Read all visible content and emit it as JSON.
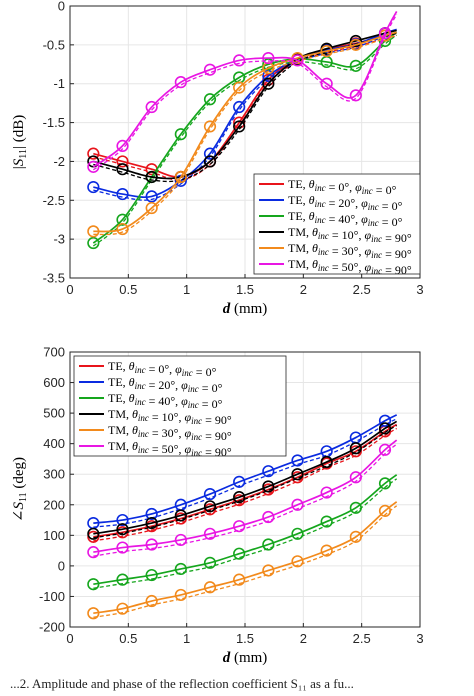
{
  "caption": "...2.   Amplitude and phase of the reflection coefficient S₁₁ as a fu...",
  "colors": {
    "TE0": "#e8141b",
    "TE20": "#0a2be0",
    "TE40": "#15a61d",
    "TM10": "#000000",
    "TM30": "#f28a1c",
    "TM50": "#e816e3"
  },
  "chart_data": [
    {
      "type": "line",
      "xlabel_italic": "d",
      "xlabel_unit": "(mm)",
      "ylabel": "|S11| (dB)",
      "xlim": [
        0,
        3
      ],
      "ylim": [
        -3.5,
        0
      ],
      "xticks": [
        "0",
        "0.5",
        "1",
        "1.5",
        "2",
        "2.5",
        "3"
      ],
      "yticks": [
        "0",
        "-0.5",
        "-1",
        "-1.5",
        "-2",
        "-2.5",
        "-3",
        "-3.5"
      ],
      "grid": true,
      "legend_position": "right",
      "x": [
        0.2,
        0.45,
        0.7,
        0.95,
        1.2,
        1.45,
        1.7,
        1.95,
        2.2,
        2.45,
        2.7
      ],
      "series": [
        {
          "name": "TE, θinc = 0°, φinc = 0°",
          "color_key": "TE0",
          "values": [
            -1.9,
            -2.0,
            -2.1,
            -2.2,
            -2.0,
            -1.5,
            -0.95,
            -0.68,
            -0.56,
            -0.48,
            -0.38
          ]
        },
        {
          "name": "TE, θinc = 20°, φinc = 0°",
          "color_key": "TE20",
          "values": [
            -2.33,
            -2.42,
            -2.45,
            -2.25,
            -1.9,
            -1.3,
            -0.9,
            -0.68,
            -0.57,
            -0.49,
            -0.35
          ]
        },
        {
          "name": "TE, θinc = 40°, φinc = 0°",
          "color_key": "TE40",
          "values": [
            -3.05,
            -2.75,
            -2.2,
            -1.65,
            -1.2,
            -0.92,
            -0.75,
            -0.68,
            -0.72,
            -0.77,
            -0.45
          ]
        },
        {
          "name": "TM, θinc = 10°, φinc = 90°",
          "color_key": "TM10",
          "values": [
            -2.0,
            -2.1,
            -2.2,
            -2.2,
            -2.0,
            -1.55,
            -1.0,
            -0.68,
            -0.55,
            -0.45,
            -0.35
          ]
        },
        {
          "name": "TM, θinc = 30°, φinc = 90°",
          "color_key": "TM30",
          "values": [
            -2.9,
            -2.87,
            -2.6,
            -2.2,
            -1.55,
            -1.05,
            -0.8,
            -0.67,
            -0.58,
            -0.5,
            -0.38
          ]
        },
        {
          "name": "TM, θinc = 50°, φinc = 90°",
          "color_key": "TM50",
          "values": [
            -2.07,
            -1.8,
            -1.3,
            -0.98,
            -0.82,
            -0.7,
            -0.67,
            -0.7,
            -1.0,
            -1.15,
            -0.35
          ]
        }
      ]
    },
    {
      "type": "line",
      "xlabel_italic": "d",
      "xlabel_unit": "(mm)",
      "ylabel": "∠S11 (deg)",
      "xlim": [
        0,
        3
      ],
      "ylim": [
        -200,
        700
      ],
      "xticks": [
        "0",
        "0.5",
        "1",
        "1.5",
        "2",
        "2.5",
        "3"
      ],
      "yticks": [
        "700",
        "600",
        "500",
        "400",
        "300",
        "200",
        "100",
        "0",
        "-100",
        "-200"
      ],
      "grid": true,
      "legend_position": "top-left",
      "x": [
        0.2,
        0.45,
        0.7,
        0.95,
        1.2,
        1.45,
        1.7,
        1.95,
        2.2,
        2.45,
        2.7
      ],
      "series": [
        {
          "name": "TE, θinc = 0°, φinc = 0°",
          "color_key": "TE0",
          "values": [
            95,
            110,
            130,
            155,
            185,
            215,
            250,
            290,
            335,
            375,
            440
          ]
        },
        {
          "name": "TE, θinc = 20°, φinc = 0°",
          "color_key": "TE20",
          "values": [
            140,
            150,
            170,
            200,
            235,
            275,
            310,
            345,
            375,
            420,
            475
          ]
        },
        {
          "name": "TE, θinc = 40°, φinc = 0°",
          "color_key": "TE40",
          "values": [
            -60,
            -45,
            -30,
            -10,
            10,
            40,
            70,
            105,
            145,
            190,
            270
          ]
        },
        {
          "name": "TM, θinc = 10°, φinc = 90°",
          "color_key": "TM10",
          "values": [
            105,
            120,
            140,
            165,
            195,
            225,
            260,
            300,
            340,
            385,
            450
          ]
        },
        {
          "name": "TM, θinc = 30°, φinc = 90°",
          "color_key": "TM30",
          "values": [
            -155,
            -140,
            -115,
            -95,
            -70,
            -45,
            -15,
            15,
            50,
            95,
            180
          ]
        },
        {
          "name": "TM, θinc = 50°, φinc = 90°",
          "color_key": "TM50",
          "values": [
            45,
            60,
            70,
            85,
            105,
            130,
            160,
            200,
            240,
            290,
            380
          ]
        }
      ]
    }
  ]
}
